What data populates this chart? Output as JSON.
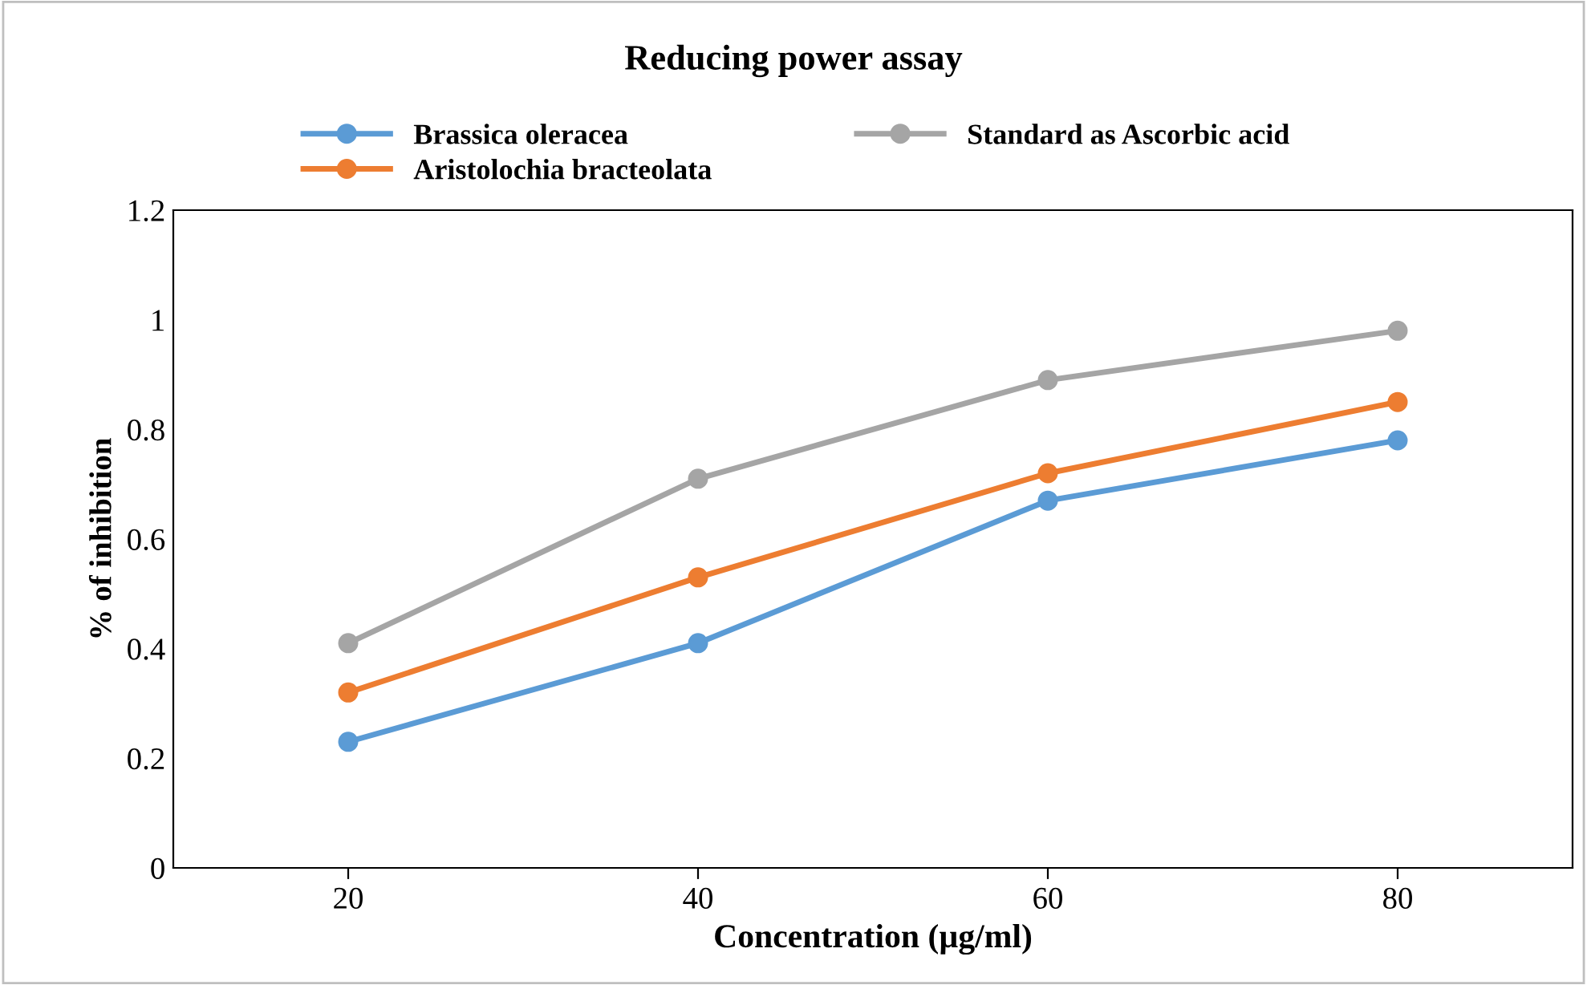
{
  "chart_data": {
    "type": "line",
    "title": "Reducing power assay",
    "xlabel": "Concentration (µg/ml)",
    "ylabel": "% of inhibition",
    "categories": [
      "20",
      "40",
      "60",
      "80"
    ],
    "series": [
      {
        "name": "Brassica oleracea",
        "color": "#5b9bd5",
        "values": [
          0.23,
          0.41,
          0.67,
          0.78
        ]
      },
      {
        "name": "Aristolochia bracteolata",
        "color": "#ed7d31",
        "values": [
          0.32,
          0.53,
          0.72,
          0.85
        ]
      },
      {
        "name": "Standard as Ascorbic acid",
        "color": "#a5a5a5",
        "values": [
          0.41,
          0.71,
          0.89,
          0.98
        ]
      }
    ],
    "ylim": [
      0,
      1.2
    ],
    "yticks": [
      0,
      0.2,
      0.4,
      0.6,
      0.8,
      1,
      1.2
    ],
    "marker": "circle",
    "line_style": "solid",
    "legend": "top",
    "grid": false
  }
}
